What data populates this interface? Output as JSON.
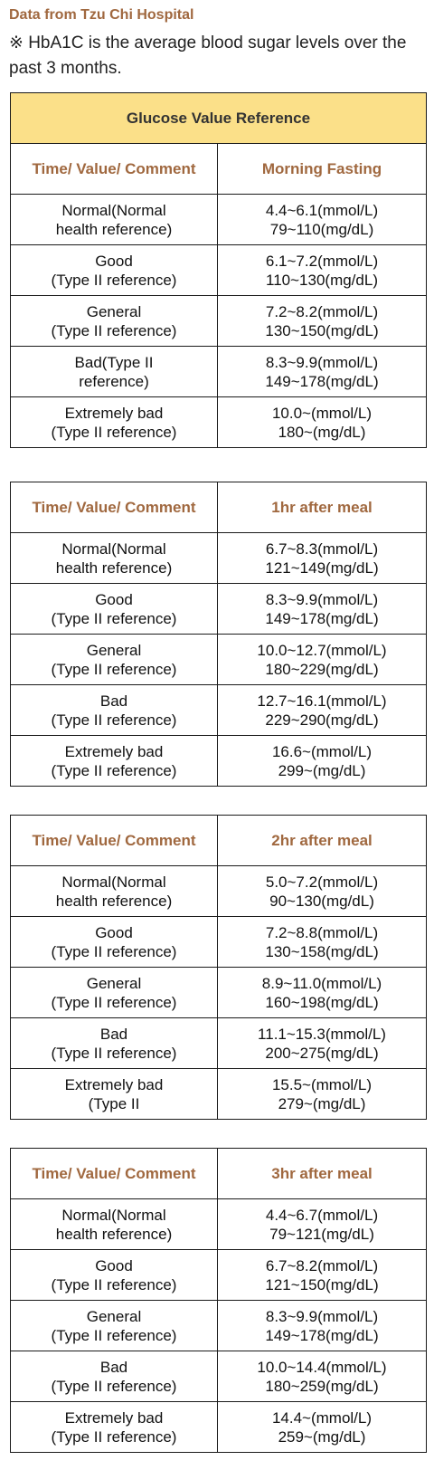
{
  "source": "Data from Tzu Chi Hospital",
  "note": "※ HbA1C is the average blood sugar levels over the past 3 months.",
  "title": "Glucose Value Reference",
  "header_left": "Time/ Value/ Comment",
  "tables": [
    {
      "column": "Morning Fasting",
      "rows": [
        {
          "comment": "Normal(Normal\nhealth reference)",
          "value": "4.4~6.1(mmol/L)\n79~110(mg/dL)"
        },
        {
          "comment": "Good\n(Type II reference)",
          "value": "6.1~7.2(mmol/L)\n110~130(mg/dL)"
        },
        {
          "comment": "General\n(Type II reference)",
          "value": "7.2~8.2(mmol/L)\n130~150(mg/dL)"
        },
        {
          "comment": "Bad(Type II\nreference)",
          "value": "8.3~9.9(mmol/L)\n149~178(mg/dL)"
        },
        {
          "comment": "Extremely bad\n(Type II reference)",
          "value": "10.0~(mmol/L)\n180~(mg/dL)"
        }
      ]
    },
    {
      "column": "1hr after meal",
      "rows": [
        {
          "comment": "Normal(Normal\nhealth reference)",
          "value": "6.7~8.3(mmol/L)\n121~149(mg/dL)"
        },
        {
          "comment": "Good\n(Type II reference)",
          "value": "8.3~9.9(mmol/L)\n149~178(mg/dL)"
        },
        {
          "comment": "General\n(Type II reference)",
          "value": "10.0~12.7(mmol/L)\n180~229(mg/dL)"
        },
        {
          "comment": "Bad\n(Type II reference)",
          "value": "12.7~16.1(mmol/L)\n229~290(mg/dL)"
        },
        {
          "comment": "Extremely bad\n(Type II reference)",
          "value": "16.6~(mmol/L)\n299~(mg/dL)"
        }
      ]
    },
    {
      "column": "2hr after meal",
      "rows": [
        {
          "comment": "Normal(Normal\nhealth reference)",
          "value": "5.0~7.2(mmol/L)\n90~130(mg/dL)"
        },
        {
          "comment": "Good\n(Type II reference)",
          "value": "7.2~8.8(mmol/L)\n130~158(mg/dL)"
        },
        {
          "comment": "General\n(Type II reference)",
          "value": "8.9~11.0(mmol/L)\n160~198(mg/dL)"
        },
        {
          "comment": "Bad\n(Type II reference)",
          "value": "11.1~15.3(mmol/L)\n200~275(mg/dL)"
        },
        {
          "comment": "Extremely bad\n(Type II",
          "value": "15.5~(mmol/L)\n279~(mg/dL)"
        }
      ]
    },
    {
      "column": "3hr after meal",
      "rows": [
        {
          "comment": "Normal(Normal\nhealth reference)",
          "value": "4.4~6.7(mmol/L)\n79~121(mg/dL)"
        },
        {
          "comment": "Good\n(Type II reference)",
          "value": "6.7~8.2(mmol/L)\n121~150(mg/dL)"
        },
        {
          "comment": "General\n(Type II reference)",
          "value": "8.3~9.9(mmol/L)\n149~178(mg/dL)"
        },
        {
          "comment": "Bad\n(Type II reference)",
          "value": "10.0~14.4(mmol/L)\n180~259(mg/dL)"
        },
        {
          "comment": "Extremely bad\n(Type II reference)",
          "value": "14.4~(mmol/L)\n259~(mg/dL)"
        }
      ]
    }
  ]
}
